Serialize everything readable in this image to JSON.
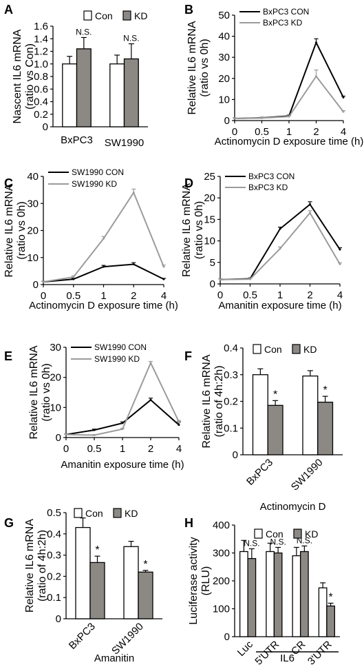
{
  "colors": {
    "con_bar": "#ffffff",
    "kd_bar": "#8c8884",
    "con_line": "#000000",
    "kd_line": "#9b9b9b",
    "axis": "#000000"
  },
  "chart_data": [
    {
      "panel": "A",
      "type": "bar",
      "ylabel": [
        "Nascent IL6 mRNA",
        "(ratio vs Con)"
      ],
      "categories": [
        "BxPC3",
        "SW1990"
      ],
      "ylim": [
        0,
        1.6
      ],
      "yticks": [
        "0",
        "0.2",
        "0.4",
        "0.6",
        "0.8",
        "1.0",
        "1.2",
        "1.4",
        "1.6"
      ],
      "legend": "top",
      "series": [
        {
          "name": "Con",
          "values": [
            1.0,
            1.0
          ],
          "errors": [
            0.12,
            0.14
          ]
        },
        {
          "name": "KD",
          "values": [
            1.24,
            1.08
          ],
          "errors": [
            0.18,
            0.24
          ]
        }
      ],
      "annotations": [
        {
          "category": 0,
          "text": "N.S."
        },
        {
          "category": 1,
          "text": "N.S."
        }
      ]
    },
    {
      "panel": "B",
      "type": "line",
      "xlabel": "Actinomycin D exposure time (h)",
      "ylabel": [
        "Relative IL6 mRNA",
        "(ratio vs 0h)"
      ],
      "x": [
        "0",
        "0.5",
        "1",
        "2",
        "4"
      ],
      "ylim": [
        0,
        50
      ],
      "yticks": [
        "0",
        "10",
        "20",
        "30",
        "40",
        "50"
      ],
      "legend": "top-left",
      "series": [
        {
          "name": "BxPC3 CON",
          "values": [
            1,
            1.3,
            2.2,
            37,
            11
          ],
          "errors": [
            0.3,
            0.3,
            0.4,
            1.8,
            0.6
          ]
        },
        {
          "name": "BxPC3 KD",
          "values": [
            1,
            1.2,
            1.9,
            21,
            4.2
          ],
          "errors": [
            0.3,
            0.3,
            0.4,
            3,
            0.5
          ]
        }
      ]
    },
    {
      "panel": "C",
      "type": "line",
      "xlabel": "Actinomycin D exposure time (h)",
      "ylabel": [
        "Relative IL6 mRNA",
        "(ratio vs 0h)"
      ],
      "x": [
        "0",
        "0.5",
        "1",
        "2",
        "4"
      ],
      "ylim": [
        0,
        40
      ],
      "yticks": [
        "0",
        "10",
        "20",
        "30",
        "40"
      ],
      "legend": "top-left",
      "series": [
        {
          "name": "SW1990 CON",
          "values": [
            1,
            2,
            6.6,
            7.5,
            2
          ],
          "errors": [
            0.2,
            0.3,
            0.5,
            0.6,
            0.3
          ]
        },
        {
          "name": "SW1990 KD",
          "values": [
            1,
            2.8,
            17,
            34,
            6.6
          ],
          "errors": [
            0.2,
            0.4,
            0.8,
            1.3,
            0.6
          ]
        }
      ]
    },
    {
      "panel": "D",
      "type": "line",
      "xlabel": "Amanitin exposure time (h)",
      "ylabel": [
        "Relative IL6 mRNA",
        "(ratio vs 0h)"
      ],
      "x": [
        "0",
        "0.5",
        "1",
        "2",
        "4"
      ],
      "ylim": [
        0,
        25
      ],
      "yticks": [
        "0",
        "5",
        "10",
        "15",
        "20",
        "25"
      ],
      "legend": "top-left",
      "series": [
        {
          "name": "BxPC3 CON",
          "values": [
            1,
            1.2,
            12.8,
            18.5,
            8
          ],
          "errors": [
            0.2,
            0.2,
            0.4,
            0.6,
            0.4
          ]
        },
        {
          "name": "BxPC3 KD",
          "values": [
            1,
            1.1,
            8.2,
            16.5,
            4.6
          ],
          "errors": [
            0.2,
            0.2,
            0.4,
            0.5,
            0.3
          ]
        }
      ]
    },
    {
      "panel": "E",
      "type": "line",
      "xlabel": "Amanitin exposure time (h)",
      "ylabel": [
        "Relative IL6 mRNA",
        "(ratio vs 0h)"
      ],
      "x": [
        "0",
        "0.5",
        "1",
        "2",
        "4"
      ],
      "ylim": [
        0,
        30
      ],
      "yticks": [
        "0",
        "10",
        "20",
        "30"
      ],
      "legend": "top-left",
      "series": [
        {
          "name": "SW1990 CON",
          "values": [
            1,
            2.5,
            4.8,
            12.5,
            4.2
          ],
          "errors": [
            0.2,
            0.3,
            0.4,
            0.6,
            1
          ]
        },
        {
          "name": "SW1990 KD",
          "values": [
            1,
            0.8,
            2.8,
            24.8,
            5.2
          ],
          "errors": [
            0.2,
            0.2,
            0.3,
            0.5,
            0.5
          ]
        }
      ]
    },
    {
      "panel": "F",
      "type": "bar",
      "xlabel": "Actinomycin D",
      "ylabel": [
        "Relative IL6 mRNA",
        "(ratio of 4h:2h)"
      ],
      "categories": [
        "BxPC3",
        "SW1990"
      ],
      "ylim": [
        0,
        0.4
      ],
      "yticks": [
        "0",
        "0.1",
        "0.2",
        "0.3",
        "0.4"
      ],
      "legend": "top",
      "series": [
        {
          "name": "Con",
          "values": [
            0.3,
            0.295
          ],
          "errors": [
            0.022,
            0.02
          ]
        },
        {
          "name": "KD",
          "values": [
            0.185,
            0.197
          ],
          "errors": [
            0.018,
            0.022
          ]
        }
      ],
      "annotations": [
        {
          "category": 0,
          "text": "*"
        },
        {
          "category": 1,
          "text": "*"
        }
      ]
    },
    {
      "panel": "G",
      "type": "bar",
      "xlabel": "Amanitin",
      "ylabel": [
        "Relative IL6 mRNA",
        "(ratio of 4h:2h)"
      ],
      "categories": [
        "BxPC3",
        "SW1990"
      ],
      "ylim": [
        0,
        0.5
      ],
      "yticks": [
        "0",
        "0.1",
        "0.2",
        "0.3",
        "0.4",
        "0.5"
      ],
      "legend": "top",
      "series": [
        {
          "name": "Con",
          "values": [
            0.43,
            0.34
          ],
          "errors": [
            0.045,
            0.025
          ]
        },
        {
          "name": "KD",
          "values": [
            0.265,
            0.22
          ],
          "errors": [
            0.03,
            0.008
          ]
        }
      ],
      "annotations": [
        {
          "category": 0,
          "text": "*"
        },
        {
          "category": 1,
          "text": "*"
        }
      ]
    },
    {
      "panel": "H",
      "type": "bar",
      "xlabel": "IL6",
      "ylabel": [
        "Luciferase activity",
        "(RLU)"
      ],
      "categories": [
        "Luc",
        "5'UTR",
        "CR",
        "3'UTR"
      ],
      "ylim": [
        0,
        400
      ],
      "yticks": [
        "0",
        "100",
        "200",
        "300",
        "400"
      ],
      "legend": "top",
      "series": [
        {
          "name": "Con",
          "values": [
            305,
            305,
            290,
            175
          ],
          "errors": [
            40,
            30,
            30,
            18
          ]
        },
        {
          "name": "KD",
          "values": [
            280,
            300,
            305,
            110
          ],
          "errors": [
            35,
            20,
            20,
            10
          ]
        }
      ],
      "annotations": [
        {
          "category": 0,
          "text": "N.S."
        },
        {
          "category": 1,
          "text": "N.S."
        },
        {
          "category": 2,
          "text": "N.S."
        },
        {
          "category": 3,
          "text": "*"
        }
      ]
    }
  ]
}
